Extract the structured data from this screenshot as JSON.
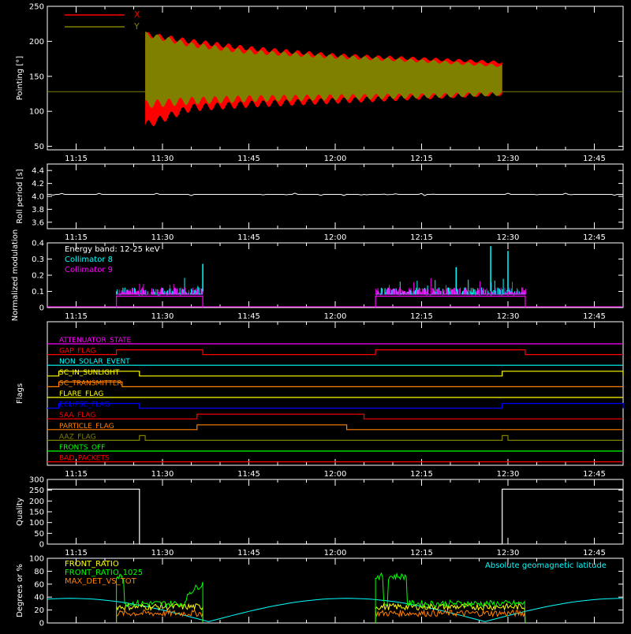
{
  "colors": {
    "background": "#000000",
    "axes": "#ffffff",
    "x": "#ff0000",
    "y": "#808000",
    "collimator8": "#00ffff",
    "collimator9": "#ff00ff",
    "front_ratio": "#ffff00",
    "front_ratio_1025": "#00ff00",
    "max_det": "#ff8000",
    "geomag": "#00ffff"
  },
  "time_ticks": [
    "11:15",
    "11:30",
    "11:45",
    "12:00",
    "12:15",
    "12:30",
    "12:45"
  ],
  "chart_data": [
    {
      "type": "line",
      "ylabel": "Pointing [°]",
      "ylim": [
        45,
        250
      ],
      "yticks": [
        "50",
        "100",
        "150",
        "200",
        "250"
      ],
      "legend": [
        "X",
        "Y"
      ],
      "legend_position": "top-left",
      "series": [
        {
          "name": "X",
          "x": [
            "11:27",
            "11:35",
            "11:45",
            "12:00",
            "12:15",
            "12:29"
          ],
          "min": [
            80,
            105,
            110,
            115,
            120,
            125
          ],
          "max": [
            210,
            200,
            190,
            180,
            175,
            170
          ]
        },
        {
          "name": "Y",
          "x": [
            "11:27",
            "11:35",
            "11:45",
            "12:00",
            "12:15",
            "12:29"
          ],
          "min": [
            110,
            115,
            118,
            120,
            122,
            125
          ],
          "max": [
            210,
            195,
            185,
            178,
            172,
            165
          ]
        }
      ],
      "baseline": 128
    },
    {
      "type": "line",
      "ylabel": "Roll period [s]",
      "ylim": [
        3.5,
        4.5
      ],
      "yticks": [
        "3.6",
        "3.8",
        "4.0",
        "4.2",
        "4.4"
      ],
      "series": [
        {
          "name": "",
          "value": 4.03
        }
      ]
    },
    {
      "type": "bar",
      "ylabel": "Normalized modulation",
      "ylim": [
        0,
        0.4
      ],
      "yticks": [
        "0",
        "0.1",
        "0.2",
        "0.3",
        "0.4"
      ],
      "legend": [
        "Energy band: 12-25 keV",
        "Collimator 8",
        "Collimator 9"
      ],
      "legend_position": "top-left",
      "windows": [
        [
          "11:22",
          "11:37"
        ],
        [
          "12:07",
          "12:33"
        ]
      ],
      "typical": 0.1,
      "peaks": [
        0.27,
        0.35,
        0.38
      ]
    },
    {
      "type": "line",
      "ylabel": "Flags",
      "flags": [
        {
          "name": "ATTENUATOR_STATE",
          "color": "#ff00ff",
          "steps": []
        },
        {
          "name": "GAP_FLAG",
          "color": "#ff0000",
          "steps": [
            [
              "11:22",
              "11:37"
            ],
            [
              "12:07",
              "12:33"
            ]
          ]
        },
        {
          "name": "NON_SOLAR_EVENT",
          "color": "#00ffff",
          "steps": []
        },
        {
          "name": "SC_IN_SUNLIGHT",
          "color": "#ffff00",
          "steps": [
            [
              "11:12",
              "11:26"
            ],
            [
              "12:29",
              "12:50"
            ]
          ],
          "invert": true
        },
        {
          "name": "SC_TRANSMITTER",
          "color": "#ff8000",
          "steps": [
            [
              "11:12",
              "11:23"
            ]
          ]
        },
        {
          "name": "FLARE_FLAG",
          "color": "#ffff00",
          "steps": []
        },
        {
          "name": "ECLIPSE_FLAG",
          "color": "#0000ff",
          "steps": [
            [
              "11:12",
              "11:26"
            ],
            [
              "12:29",
              "12:50"
            ]
          ]
        },
        {
          "name": "SAA_FLAG",
          "color": "#ff0000",
          "steps": [
            [
              "11:36",
              "12:05"
            ]
          ]
        },
        {
          "name": "PARTICLE_FLAG",
          "color": "#ff8000",
          "steps": [
            [
              "11:36",
              "12:02"
            ]
          ]
        },
        {
          "name": "AAZ_FLAG",
          "color": "#808000",
          "steps": [
            [
              "11:26",
              "11:27"
            ],
            [
              "12:29",
              "12:30"
            ]
          ]
        },
        {
          "name": "FRONTS_OFF",
          "color": "#00ff00",
          "steps": []
        },
        {
          "name": "BAD_PACKETS",
          "color": "#ff0000",
          "steps": []
        }
      ]
    },
    {
      "type": "line",
      "ylabel": "Quality",
      "ylim": [
        0,
        300
      ],
      "yticks": [
        "0",
        "50",
        "100",
        "150",
        "200",
        "250",
        "300"
      ],
      "series": [
        {
          "name": "",
          "x": [
            "11:10",
            "11:26",
            "11:26",
            "12:29",
            "12:29",
            "12:50"
          ],
          "values": [
            255,
            255,
            0,
            0,
            255,
            255
          ]
        }
      ]
    },
    {
      "type": "line",
      "ylabel": "Degrees or %",
      "ylim": [
        0,
        100
      ],
      "yticks": [
        "0",
        "20",
        "40",
        "60",
        "80",
        "100"
      ],
      "legend": [
        "FRONT_RATIO",
        "FRONT_RATIO_1025",
        "MAX_DET_VS_TOT"
      ],
      "legend_position": "top-left",
      "annotation": "Absolute geomagnetic latitude",
      "series": [
        {
          "name": "FRONT_RATIO",
          "windows": [
            [
              "11:22",
              "11:37"
            ],
            [
              "12:07",
              "12:33"
            ]
          ],
          "level": 25
        },
        {
          "name": "FRONT_RATIO_1025",
          "windows": [
            [
              "11:22",
              "11:37"
            ],
            [
              "12:07",
              "12:33"
            ]
          ],
          "level": 30,
          "peak": 72
        },
        {
          "name": "MAX_DET_VS_TOT",
          "windows": [
            [
              "11:22",
              "11:37"
            ],
            [
              "12:07",
              "12:33"
            ]
          ],
          "level": 15
        },
        {
          "name": "Absolute geomagnetic latitude",
          "x": [
            "11:10",
            "11:38",
            "12:00",
            "12:26",
            "12:50"
          ],
          "values": [
            40,
            2,
            38,
            2,
            35
          ]
        }
      ]
    }
  ]
}
